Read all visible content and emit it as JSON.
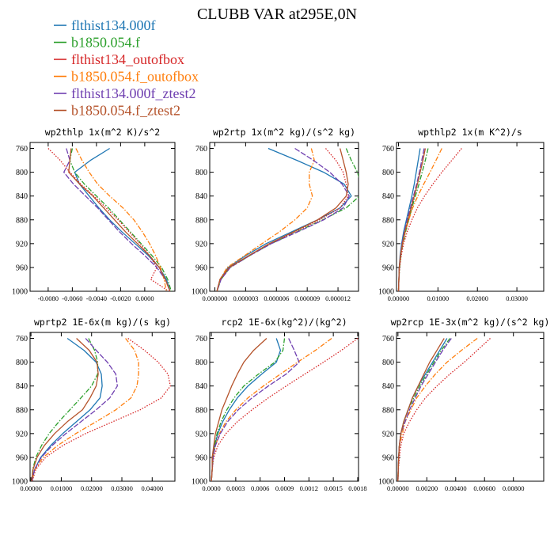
{
  "title": "CLUBB VAR at295E,0N",
  "legend": [
    {
      "label": "flthist134.000f",
      "color": "#1f77b4",
      "dash": "solid"
    },
    {
      "label": "b1850.054.f",
      "color": "#2ca02c",
      "dash": "dashdot"
    },
    {
      "label": "flthist134_outofbox",
      "color": "#d62728",
      "dash": "dotted"
    },
    {
      "label": "b1850.054.f_outofbox",
      "color": "#ff7f0e",
      "dash": "dashdot"
    },
    {
      "label": "flthist134.000f_ztest2",
      "color": "#6f3fb0",
      "dash": "longdash"
    },
    {
      "label": "b1850.054.f_ztest2",
      "color": "#b5532b",
      "dash": "solid"
    }
  ],
  "chart_data": [
    {
      "type": "line",
      "title": "wp2thlp  1x(m^2 K)/s^2",
      "xlim": [
        -0.0095,
        0.0025
      ],
      "xticks": [
        "-0.0080",
        "-0.0060",
        "-0.0040",
        "-0.0020",
        "0.0000"
      ],
      "xtick_values": [
        -0.008,
        -0.006,
        -0.004,
        -0.002,
        0.0
      ],
      "ylim": [
        1000,
        750
      ],
      "yticks": [
        "760",
        "800",
        "840",
        "880",
        "920",
        "960",
        "1000"
      ],
      "y": [
        760,
        780,
        800,
        820,
        840,
        860,
        880,
        900,
        920,
        940,
        960,
        980,
        1000
      ],
      "series": [
        {
          "values": [
            -0.0029,
            -0.0045,
            -0.0058,
            -0.0054,
            -0.0046,
            -0.0038,
            -0.0029,
            -0.0019,
            -0.0008,
            0.0003,
            0.0012,
            0.0018,
            0.0021
          ]
        },
        {
          "values": [
            -0.006,
            -0.0062,
            -0.0058,
            -0.005,
            -0.004,
            -0.003,
            -0.0021,
            -0.0012,
            -0.0003,
            0.0006,
            0.0014,
            0.0019,
            0.0022
          ]
        },
        {
          "values": [
            -0.008,
            -0.007,
            -0.0062,
            -0.0053,
            -0.0042,
            -0.0032,
            -0.0022,
            -0.0013,
            -0.0004,
            0.0004,
            0.001,
            0.0005,
            0.002
          ]
        },
        {
          "values": [
            -0.0057,
            -0.0052,
            -0.0046,
            -0.0039,
            -0.0029,
            -0.0018,
            -0.0009,
            -0.0002,
            0.0004,
            0.0009,
            0.0013,
            0.0016,
            0.0018
          ]
        },
        {
          "values": [
            -0.0065,
            -0.0062,
            -0.0067,
            -0.0059,
            -0.0049,
            -0.0039,
            -0.003,
            -0.0021,
            -0.0011,
            0.0,
            0.001,
            0.0017,
            0.0021
          ]
        },
        {
          "values": [
            -0.0061,
            -0.0062,
            -0.0063,
            -0.0054,
            -0.0043,
            -0.0034,
            -0.0025,
            -0.0016,
            -0.0006,
            0.0004,
            0.0012,
            0.0017,
            0.0021
          ]
        }
      ]
    },
    {
      "type": "line",
      "title": "wp2rtp  1x(m^2 kg)/(s^2 kg)",
      "xlim": [
        -5e-07,
        1.4e-05
      ],
      "xticks": [
        "0.000000",
        "0.000003",
        "0.000006",
        "0.000009",
        "0.000012"
      ],
      "xtick_values": [
        0.0,
        3e-06,
        6e-06,
        9e-06,
        1.2e-05
      ],
      "ylim": [
        1000,
        750
      ],
      "yticks": [
        "760",
        "800",
        "840",
        "880",
        "920",
        "960",
        "1000"
      ],
      "y": [
        760,
        780,
        800,
        820,
        840,
        860,
        880,
        900,
        920,
        940,
        960,
        980,
        1000
      ],
      "series": [
        {
          "values": [
            5.2e-06,
            8e-06,
            1.06e-05,
            1.26e-05,
            1.33e-05,
            1.22e-05,
            1e-05,
            7.5e-06,
            5e-06,
            3e-06,
            1.3e-06,
            5e-07,
            2e-07
          ]
        },
        {
          "values": [
            1.28e-05,
            1.33e-05,
            1.39e-05,
            1.42e-05,
            1.41e-05,
            1.28e-05,
            1.05e-05,
            8e-06,
            5.5e-06,
            3.4e-06,
            1.5e-06,
            6e-07,
            2e-07
          ]
        },
        {
          "values": [
            1.08e-05,
            1.18e-05,
            1.25e-05,
            1.28e-05,
            1.3e-05,
            1.22e-05,
            1.02e-05,
            7.8e-06,
            5.4e-06,
            3.3e-06,
            1.4e-06,
            5e-07,
            2e-07
          ]
        },
        {
          "values": [
            9.4e-06,
            9.7e-06,
            9.2e-06,
            9.2e-06,
            9.5e-06,
            9e-06,
            7.8e-06,
            6.3e-06,
            4.6e-06,
            2.9e-06,
            1.2e-06,
            5e-07,
            2e-07
          ]
        },
        {
          "values": [
            7.8e-06,
            9.6e-06,
            1.12e-05,
            1.24e-05,
            1.31e-05,
            1.25e-05,
            1.06e-05,
            8.1e-06,
            5.5e-06,
            3.4e-06,
            1.5e-06,
            6e-07,
            2e-07
          ]
        },
        {
          "values": [
            1.22e-05,
            1.25e-05,
            1.28e-05,
            1.3e-05,
            1.28e-05,
            1.18e-05,
            1e-05,
            7.7e-06,
            5.3e-06,
            3.3e-06,
            1.4e-06,
            5e-07,
            2e-07
          ]
        }
      ]
    },
    {
      "type": "line",
      "title": "wpthlp2  1x(m K^2)/s",
      "xlim": [
        -0.0005,
        0.0368
      ],
      "xticks": [
        "0.00000",
        "0.01000",
        "0.02000",
        "0.03000"
      ],
      "xtick_values": [
        0.0,
        0.01,
        0.02,
        0.03
      ],
      "ylim": [
        1000,
        750
      ],
      "yticks": [
        "760",
        "800",
        "840",
        "880",
        "920",
        "960",
        "1000"
      ],
      "y": [
        760,
        780,
        800,
        820,
        840,
        860,
        880,
        900,
        920,
        940,
        960,
        980,
        1000
      ],
      "series": [
        {
          "values": [
            0.0055,
            0.005,
            0.0045,
            0.004,
            0.0034,
            0.0027,
            0.002,
            0.0013,
            0.0008,
            0.0004,
            0.0002,
            0.0001,
            0.0
          ]
        },
        {
          "values": [
            0.0075,
            0.0068,
            0.006,
            0.0052,
            0.0043,
            0.0034,
            0.0026,
            0.0018,
            0.0011,
            0.0006,
            0.0003,
            0.0001,
            0.0
          ]
        },
        {
          "values": [
            0.016,
            0.0135,
            0.011,
            0.0087,
            0.0066,
            0.0048,
            0.0034,
            0.0022,
            0.0013,
            0.0007,
            0.0003,
            0.0001,
            0.0
          ]
        },
        {
          "values": [
            0.011,
            0.0095,
            0.008,
            0.0064,
            0.0049,
            0.0036,
            0.0026,
            0.0017,
            0.001,
            0.0005,
            0.0002,
            0.0001,
            0.0
          ]
        },
        {
          "values": [
            0.0065,
            0.0059,
            0.0053,
            0.0046,
            0.0038,
            0.003,
            0.0022,
            0.0015,
            0.0009,
            0.0005,
            0.0002,
            0.0001,
            0.0
          ]
        },
        {
          "values": [
            0.0068,
            0.0062,
            0.0055,
            0.0048,
            0.004,
            0.0032,
            0.0024,
            0.0016,
            0.001,
            0.0005,
            0.0002,
            0.0001,
            0.0
          ]
        }
      ]
    },
    {
      "type": "line",
      "title": "wprtp2  1E-6x(m kg)/(s kg)",
      "xlim": [
        -0.0003,
        0.0475
      ],
      "xticks": [
        "0.00000",
        "0.01000",
        "0.02000",
        "0.03000",
        "0.04000"
      ],
      "xtick_values": [
        0.0,
        0.01,
        0.02,
        0.03,
        0.04
      ],
      "ylim": [
        1000,
        750
      ],
      "yticks": [
        "760",
        "800",
        "840",
        "880",
        "920",
        "960",
        "1000"
      ],
      "y": [
        760,
        780,
        800,
        820,
        840,
        860,
        880,
        900,
        920,
        940,
        960,
        980,
        1000
      ],
      "series": [
        {
          "values": [
            0.012,
            0.0175,
            0.0215,
            0.0232,
            0.0235,
            0.0228,
            0.0195,
            0.015,
            0.0105,
            0.0065,
            0.0032,
            0.0012,
            0.0003
          ]
        },
        {
          "values": [
            0.019,
            0.021,
            0.022,
            0.022,
            0.02,
            0.0165,
            0.0128,
            0.0092,
            0.006,
            0.0035,
            0.0016,
            0.0006,
            0.0002
          ]
        },
        {
          "values": [
            0.032,
            0.0375,
            0.042,
            0.0452,
            0.046,
            0.043,
            0.036,
            0.027,
            0.018,
            0.0105,
            0.0048,
            0.0016,
            0.0004
          ]
        },
        {
          "values": [
            0.0312,
            0.0342,
            0.0355,
            0.0355,
            0.035,
            0.033,
            0.028,
            0.0215,
            0.0148,
            0.0088,
            0.004,
            0.0013,
            0.0003
          ]
        },
        {
          "values": [
            0.018,
            0.0215,
            0.0252,
            0.028,
            0.0285,
            0.026,
            0.0215,
            0.0165,
            0.0115,
            0.007,
            0.0034,
            0.0012,
            0.0003
          ]
        },
        {
          "values": [
            0.015,
            0.0192,
            0.0218,
            0.0222,
            0.0215,
            0.0195,
            0.017,
            0.012,
            0.0078,
            0.0044,
            0.002,
            0.0007,
            0.0002
          ]
        }
      ]
    },
    {
      "type": "line",
      "title": "rcp2  1E-6x(kg^2)/(kg^2)",
      "xlim": [
        -2e-05,
        0.00181
      ],
      "xticks": [
        "0.0000",
        "0.0003",
        "0.0006",
        "0.0009",
        "0.0012",
        "0.0015",
        "0.0018"
      ],
      "xtick_values": [
        0.0,
        0.0003,
        0.0006,
        0.0009,
        0.0012,
        0.0015,
        0.0018
      ],
      "ylim": [
        1000,
        750
      ],
      "yticks": [
        "760",
        "800",
        "840",
        "880",
        "920",
        "960",
        "1000"
      ],
      "y": [
        760,
        780,
        800,
        820,
        840,
        860,
        880,
        900,
        920,
        940,
        960,
        980,
        1000
      ],
      "series": [
        {
          "values": [
            0.0008,
            0.00085,
            0.0008,
            0.00062,
            0.00045,
            0.00032,
            0.00022,
            0.00014,
            8e-05,
            4e-05,
            2e-05,
            1e-05,
            0.0
          ]
        },
        {
          "values": [
            0.0009,
            0.00088,
            0.00078,
            0.00058,
            0.0004,
            0.00028,
            0.00019,
            0.00012,
            7e-05,
            4e-05,
            2e-05,
            1e-05,
            0.0
          ]
        },
        {
          "values": [
            0.0018,
            0.0016,
            0.00138,
            0.00115,
            0.00092,
            0.0007,
            0.0005,
            0.00032,
            0.00018,
            8e-05,
            3e-05,
            1e-05,
            0.0
          ]
        },
        {
          "values": [
            0.00148,
            0.00128,
            0.00106,
            0.00085,
            0.00064,
            0.00045,
            0.0003,
            0.00018,
            0.0001,
            5e-05,
            2e-05,
            1e-05,
            0.0
          ]
        },
        {
          "values": [
            0.00095,
            0.00102,
            0.00108,
            0.00092,
            0.0007,
            0.0005,
            0.00033,
            0.0002,
            0.00011,
            5e-05,
            2e-05,
            1e-05,
            0.0
          ]
        },
        {
          "values": [
            0.00068,
            0.00052,
            0.0004,
            0.00032,
            0.00025,
            0.00019,
            0.00013,
            9e-05,
            5e-05,
            3e-05,
            1e-05,
            1e-05,
            0.0
          ]
        }
      ]
    },
    {
      "type": "line",
      "title": "wp2rcp  1E-3x(m^2 kg)/(s^2 kg)",
      "xlim": [
        -0.0001,
        0.0101
      ],
      "xticks": [
        "0.00000",
        "0.00200",
        "0.00400",
        "0.00600",
        "0.00800"
      ],
      "xtick_values": [
        0.0,
        0.002,
        0.004,
        0.006,
        0.008
      ],
      "ylim": [
        1000,
        750
      ],
      "yticks": [
        "760",
        "800",
        "840",
        "880",
        "920",
        "960",
        "1000"
      ],
      "y": [
        760,
        780,
        800,
        820,
        840,
        860,
        880,
        900,
        920,
        940,
        960,
        980,
        1000
      ],
      "series": [
        {
          "values": [
            0.0034,
            0.0029,
            0.0024,
            0.0019,
            0.0014,
            0.001,
            0.0007,
            0.0004,
            0.0002,
            0.0001,
            5e-05,
            2e-05,
            0.0
          ]
        },
        {
          "values": [
            0.0036,
            0.003,
            0.0025,
            0.002,
            0.0015,
            0.0011,
            0.0007,
            0.0004,
            0.0002,
            0.0001,
            5e-05,
            2e-05,
            0.0
          ]
        },
        {
          "values": [
            0.0064,
            0.0055,
            0.0046,
            0.0036,
            0.0027,
            0.0019,
            0.0013,
            0.0008,
            0.0004,
            0.0002,
            0.0001,
            3e-05,
            0.0
          ]
        },
        {
          "values": [
            0.0055,
            0.0044,
            0.0034,
            0.0026,
            0.0019,
            0.0013,
            0.0009,
            0.0005,
            0.0003,
            0.0001,
            5e-05,
            2e-05,
            0.0
          ]
        },
        {
          "values": [
            0.0037,
            0.0031,
            0.0026,
            0.0021,
            0.0016,
            0.0012,
            0.0008,
            0.0005,
            0.0002,
            0.0001,
            5e-05,
            2e-05,
            0.0
          ]
        },
        {
          "values": [
            0.0032,
            0.0027,
            0.0022,
            0.0018,
            0.0014,
            0.001,
            0.0007,
            0.0004,
            0.0002,
            0.0001,
            5e-05,
            2e-05,
            0.0
          ]
        }
      ]
    }
  ]
}
